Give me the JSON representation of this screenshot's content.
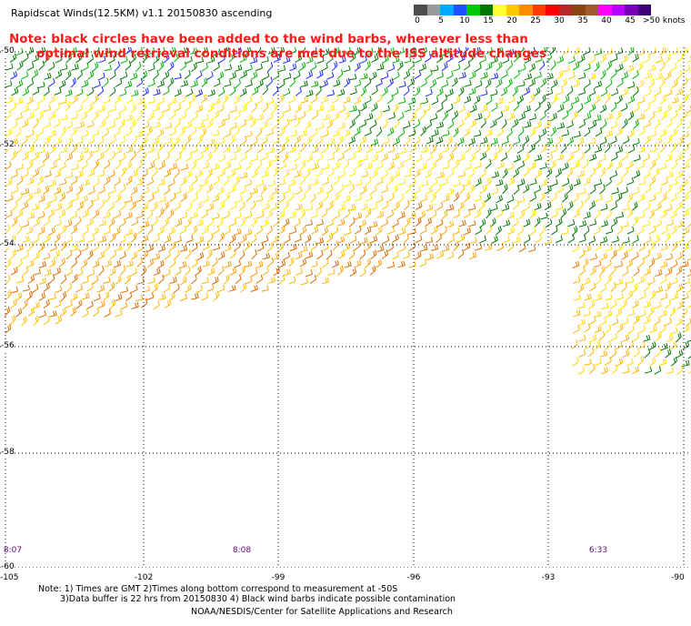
{
  "header": {
    "title": "Rapidscat Winds(12.5KM) v1.1 20150830 ascending"
  },
  "note": {
    "line1": "Note: black circles have been added to the wind barbs, wherever less than",
    "line2": "optimal wind retrieval conditions are met due to the ISS altitude changes"
  },
  "color_scale": {
    "colors": [
      "#4d4d4d",
      "#9a9a9a",
      "#00a8ff",
      "#1e50ff",
      "#00c800",
      "#007800",
      "#ffff33",
      "#ffc800",
      "#ff8c00",
      "#ff3c00",
      "#ff0000",
      "#b42828",
      "#8b4513",
      "#a05a2c",
      "#ff00ff",
      "#b400ff",
      "#7800b4",
      "#3c0078"
    ],
    "ticks": [
      "0",
      "5",
      "10",
      "15",
      "20",
      "25",
      "30",
      "35",
      "40",
      "45",
      ">50 knots"
    ]
  },
  "map": {
    "lat_labels": [
      "-50",
      "-52",
      "-54",
      "-56",
      "-58",
      "-60"
    ],
    "lon_labels": [
      "-105",
      "-102",
      "-99",
      "-96",
      "-93",
      "-90"
    ],
    "time_labels": [
      "8:07",
      "8:08",
      "6:33"
    ]
  },
  "footer": {
    "note1": "Note: 1) Times are GMT 2)Times along bottom correspond to measurement at -50S",
    "note2": "3)Data buffer is 22 hrs from 20150830 4) Black wind barbs indicate possible contamination",
    "credit": "NOAA/NESDIS/Center for Satellite Applications and Research"
  }
}
